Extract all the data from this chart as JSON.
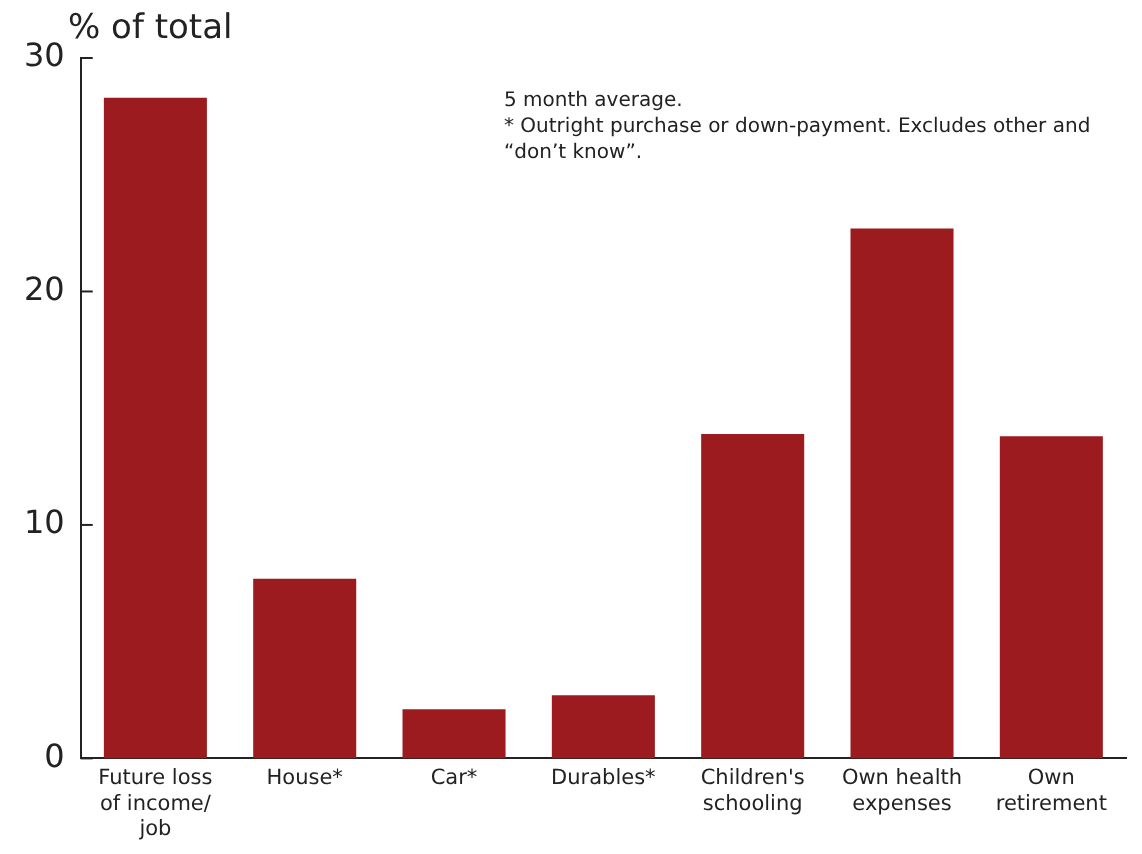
{
  "chart_data": {
    "type": "bar",
    "ylabel": "% of total",
    "categories": [
      "Future loss of income/ job",
      "House*",
      "Car*",
      "Durables*",
      "Children's schooling",
      "Own health expenses",
      "Own retirement"
    ],
    "values": [
      28.3,
      7.7,
      2.1,
      2.7,
      13.9,
      22.7,
      13.8
    ],
    "color": "#9b1b1f",
    "ylim": [
      0,
      30
    ],
    "yticks": [
      0,
      10,
      20,
      30
    ],
    "grid": false,
    "legend": false,
    "annotations": [
      "5 month average.",
      "* Outright purchase or down-payment. Excludes other and “don’t know”."
    ]
  }
}
